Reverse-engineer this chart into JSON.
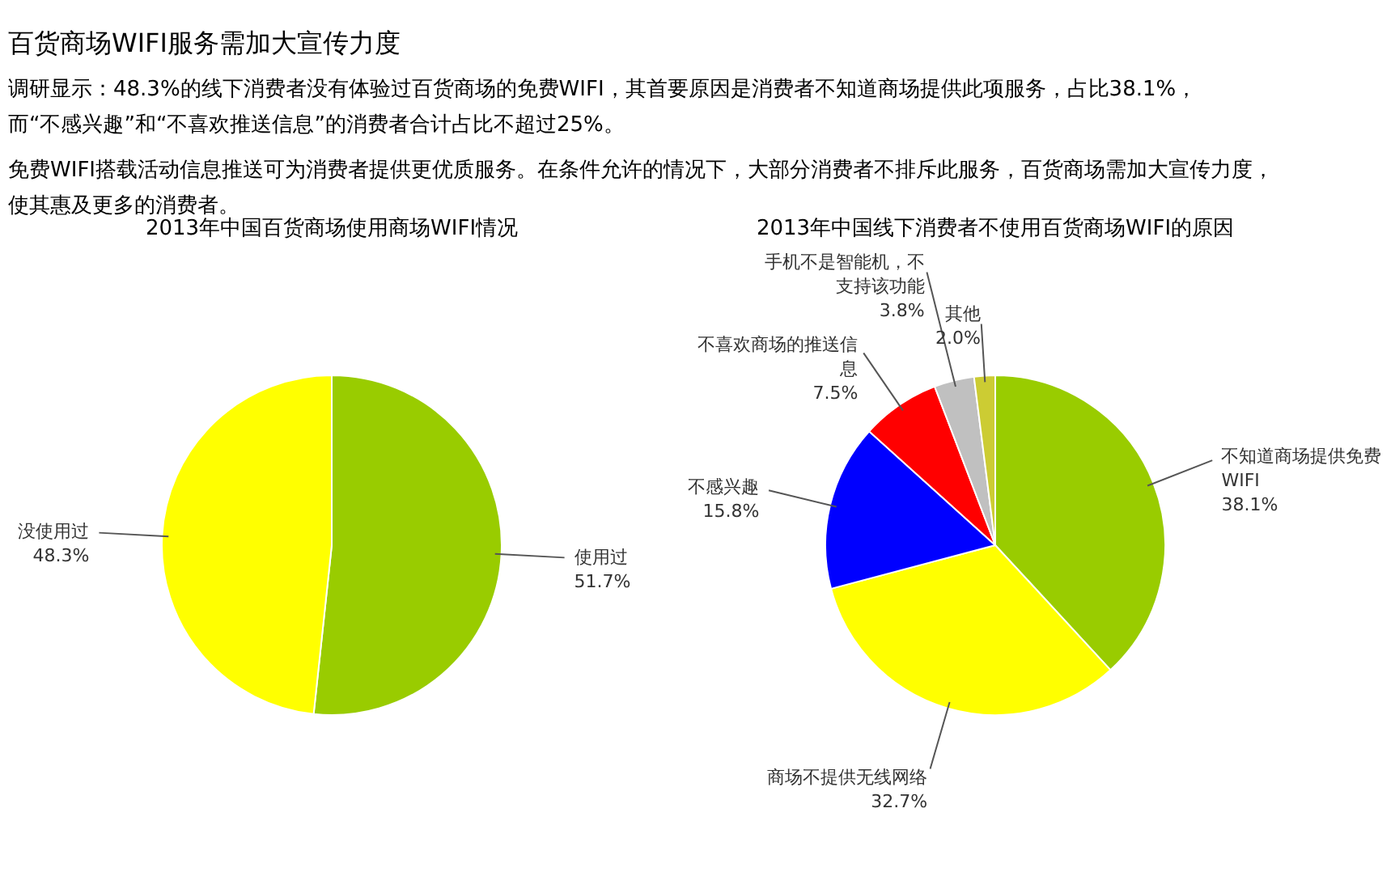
{
  "chart_data": [
    {
      "type": "other",
      "title": "百货商场WIFI服务需加大宣传力度",
      "annotations": [
        "调研显示：48.3%的线下消费者没有体验过百货商场的免费WIFI，其首要原因是消费者不知道商场提供此项服务，占比38.1%，而“不感兴趣”和“不喜欢推送信息”的消费者合计占比不超过25%。",
        "免费WIFI搭载活动信息推送可为消费者提供更优质服务。在条件允许的情况下，大部分消费者不排斥此服务，百货商场需加大宣传力度，使其惠及更多的消费者。"
      ]
    },
    {
      "type": "pie",
      "title": "2013年中国百货商场使用商场WIFI情况",
      "categories": [
        "使用过",
        "没使用过"
      ],
      "values": [
        51.7,
        48.3
      ],
      "colors": [
        "#99cc00",
        "#ffff00"
      ],
      "value_labels": [
        "51.7%",
        "48.3%"
      ]
    },
    {
      "type": "pie",
      "title": "2013年中国线下消费者不使用百货商场WIFI的原因",
      "categories": [
        "不知道商场提供免费WIFI",
        "商场不提供无线网络",
        "不感兴趣",
        "不喜欢商场的推送信息",
        "手机不是智能机，不支持该功能",
        "其他"
      ],
      "values": [
        38.1,
        32.7,
        15.8,
        7.5,
        3.8,
        2.0
      ],
      "colors": [
        "#99cc00",
        "#ffff00",
        "#0000ff",
        "#ff0000",
        "#c0c0c0",
        "#cccc33"
      ],
      "value_labels": [
        "38.1%",
        "32.7%",
        "15.8%",
        "7.5%",
        "3.8%",
        "2.0%"
      ]
    }
  ]
}
